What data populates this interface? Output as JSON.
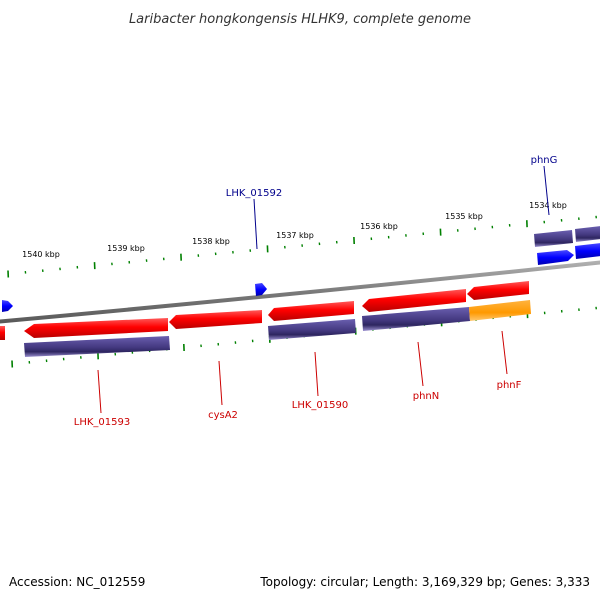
{
  "title": "Laribacter hongkongensis HLHK9, complete genome",
  "footer": {
    "accession": "Accession: NC_012559",
    "summary": "Topology: circular; Length: 3,169,329 bp; Genes: 3,333"
  },
  "colors": {
    "backbone": "#808080",
    "forward_cds": "#0000ff",
    "forward_gene": "#4b3f8c",
    "reverse_cds": "#ff0000",
    "reverse_gene": "#4b3f8c",
    "highlight_gene": "#ff9900",
    "tick": "#008000",
    "label_forward": "#00008b",
    "label_reverse": "#cc0000"
  },
  "scale_labels": [
    "1540 kbp",
    "1539 kbp",
    "1538 kbp",
    "1537 kbp",
    "1536 kbp",
    "1535 kbp",
    "1534 kbp"
  ],
  "gene_labels": {
    "forward": [
      "LHK_01592",
      "phnG"
    ],
    "reverse": [
      "LHK_01593",
      "cysA2",
      "LHK_01590",
      "phnN",
      "phnF"
    ]
  }
}
